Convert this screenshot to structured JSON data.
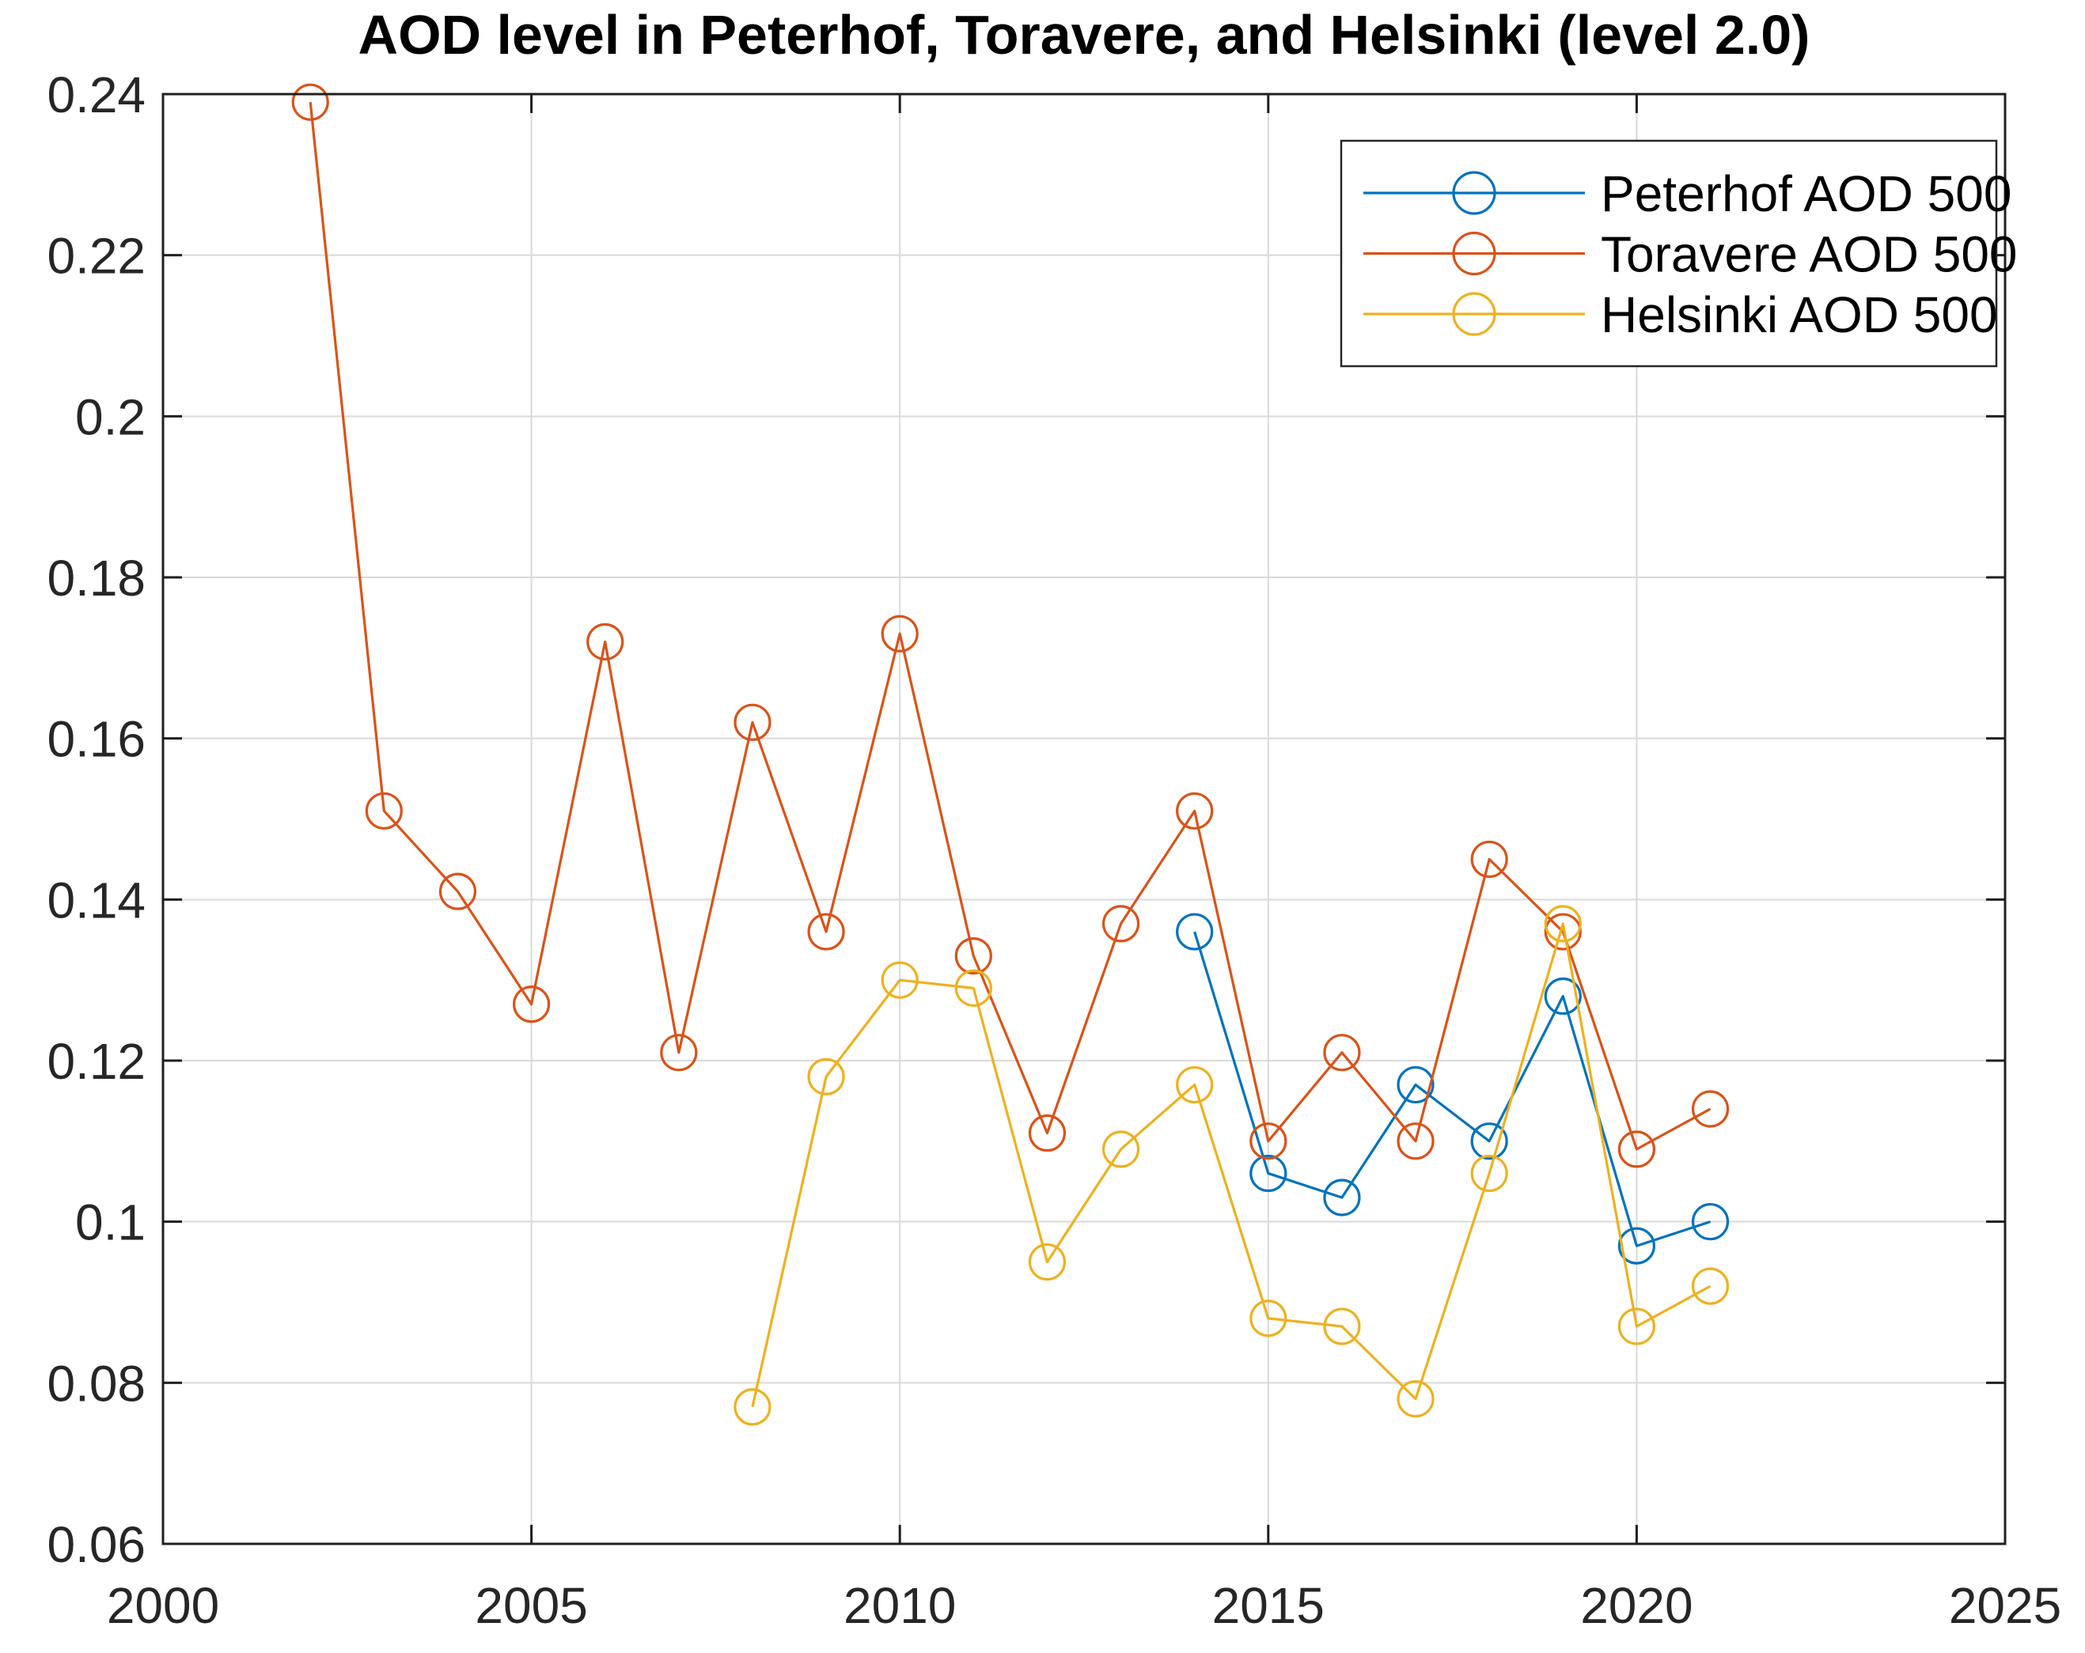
{
  "chart_data": {
    "type": "line",
    "title": "AOD level in Peterhof, Toravere, and Helsinki (level 2.0)",
    "xlabel": "",
    "ylabel": "",
    "xlim": [
      2000,
      2025
    ],
    "ylim": [
      0.06,
      0.24
    ],
    "x_ticks": [
      2000,
      2005,
      2010,
      2015,
      2020,
      2025
    ],
    "x_tick_labels": [
      "2000",
      "2005",
      "2010",
      "2015",
      "2020",
      "2025"
    ],
    "y_ticks": [
      0.06,
      0.08,
      0.1,
      0.12,
      0.14,
      0.16,
      0.18,
      0.2,
      0.22,
      0.24
    ],
    "y_tick_labels": [
      "0.06",
      "0.08",
      "0.1",
      "0.12",
      "0.14",
      "0.16",
      "0.18",
      "0.2",
      "0.22",
      "0.24"
    ],
    "grid": true,
    "legend_position": "top-right",
    "marker": "circle",
    "axis_color": "#1f1f1f",
    "grid_color": "#d9d9d9",
    "background": "#ffffff",
    "series": [
      {
        "name": "Peterhof AOD 500",
        "color": "#0072BD",
        "points": [
          [
            2014,
            0.136
          ],
          [
            2015,
            0.106
          ],
          [
            2016,
            0.103
          ],
          [
            2017,
            0.117
          ],
          [
            2018,
            0.11
          ],
          [
            2019,
            0.128
          ],
          [
            2020,
            0.097
          ],
          [
            2021,
            0.1
          ]
        ]
      },
      {
        "name": "Toravere AOD 500",
        "color": "#D95319",
        "points": [
          [
            2002,
            0.239
          ],
          [
            2003,
            0.151
          ],
          [
            2004,
            0.141
          ],
          [
            2005,
            0.127
          ],
          [
            2006,
            0.172
          ],
          [
            2007,
            0.121
          ],
          [
            2008,
            0.162
          ],
          [
            2009,
            0.136
          ],
          [
            2010,
            0.173
          ],
          [
            2011,
            0.133
          ],
          [
            2012,
            0.111
          ],
          [
            2013,
            0.137
          ],
          [
            2014,
            0.151
          ],
          [
            2015,
            0.11
          ],
          [
            2016,
            0.121
          ],
          [
            2017,
            0.11
          ],
          [
            2018,
            0.145
          ],
          [
            2019,
            0.136
          ],
          [
            2020,
            0.109
          ],
          [
            2021,
            0.114
          ]
        ]
      },
      {
        "name": "Helsinki AOD 500",
        "color": "#EDB120",
        "points": [
          [
            2008,
            0.077
          ],
          [
            2009,
            0.118
          ],
          [
            2010,
            0.13
          ],
          [
            2011,
            0.129
          ],
          [
            2012,
            0.095
          ],
          [
            2013,
            0.109
          ],
          [
            2014,
            0.117
          ],
          [
            2015,
            0.088
          ],
          [
            2016,
            0.087
          ],
          [
            2017,
            0.078
          ],
          [
            2018,
            0.106
          ],
          [
            2019,
            0.137
          ],
          [
            2020,
            0.087
          ],
          [
            2021,
            0.092
          ]
        ]
      }
    ],
    "legend": {
      "labels": [
        "Peterhof AOD 500",
        "Toravere AOD 500",
        "Helsinki AOD 500"
      ]
    }
  }
}
